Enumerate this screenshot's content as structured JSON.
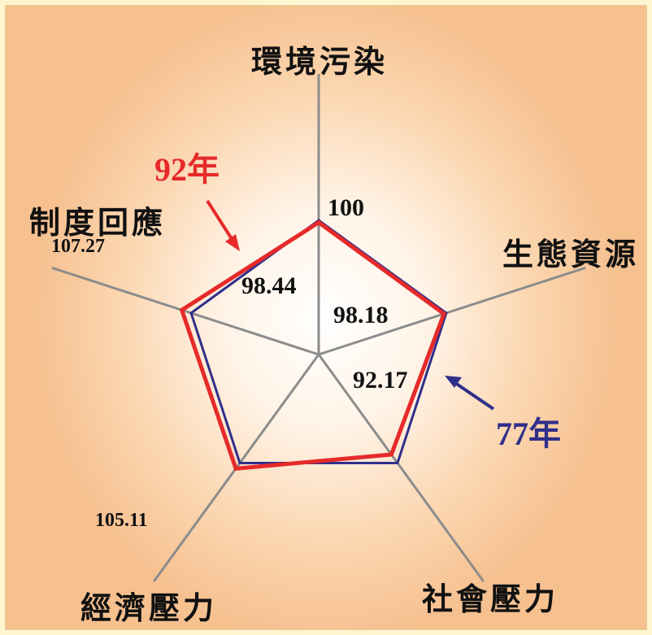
{
  "chart_data": {
    "type": "radar",
    "axes": [
      "環境污染",
      "生態資源",
      "社會壓力",
      "經濟壓力",
      "制度回應"
    ],
    "scale_reference": 100,
    "scale_label": "100",
    "series": [
      {
        "name": "77年",
        "color": "#2f2f8a",
        "values": [
          100,
          100,
          100,
          100,
          100
        ]
      },
      {
        "name": "92年",
        "color": "#e62a2a",
        "values": [
          98.44,
          98.18,
          92.17,
          105.11,
          107.27
        ]
      }
    ],
    "value_labels": [
      "98.44",
      "98.18",
      "92.17",
      "105.11",
      "107.27"
    ]
  },
  "legend": {
    "label_92": "92年",
    "label_77": "77年"
  },
  "colors": {
    "background": "#fdf6cf",
    "axis": "#8c8c8c",
    "series_77": "#2f2f8a",
    "series_92": "#e62a2a"
  }
}
